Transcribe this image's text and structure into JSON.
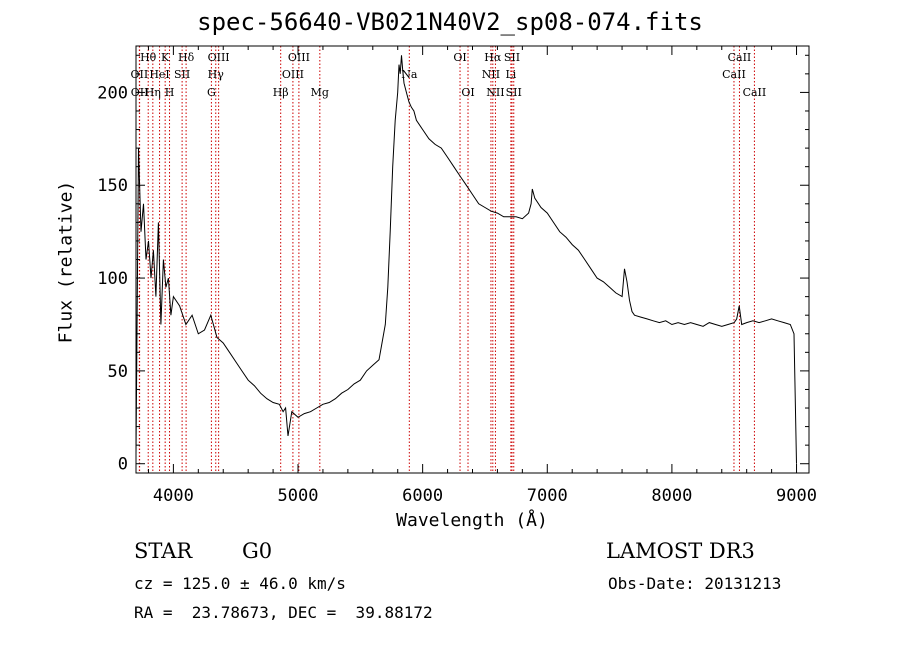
{
  "chart_data": {
    "type": "line",
    "title": "spec-56640-VB021N40V2_sp08-074.fits",
    "xlabel": "Wavelength (Å)",
    "ylabel": "Flux (relative)",
    "xlim": [
      3700,
      9100
    ],
    "ylim": [
      -5,
      225
    ],
    "x_ticks": [
      4000,
      5000,
      6000,
      7000,
      8000,
      9000
    ],
    "y_ticks": [
      0,
      50,
      100,
      150,
      200
    ],
    "series": [
      {
        "name": "flux",
        "x": [
          3700,
          3720,
          3740,
          3760,
          3780,
          3800,
          3820,
          3840,
          3860,
          3880,
          3900,
          3920,
          3940,
          3960,
          3980,
          4000,
          4050,
          4100,
          4150,
          4200,
          4250,
          4300,
          4350,
          4400,
          4450,
          4500,
          4550,
          4600,
          4650,
          4700,
          4750,
          4800,
          4850,
          4880,
          4900,
          4920,
          4950,
          5000,
          5050,
          5100,
          5150,
          5200,
          5250,
          5300,
          5350,
          5400,
          5450,
          5500,
          5550,
          5600,
          5650,
          5700,
          5720,
          5740,
          5760,
          5780,
          5800,
          5810,
          5820,
          5830,
          5840,
          5850,
          5870,
          5890,
          5910,
          5930,
          5950,
          6000,
          6050,
          6100,
          6150,
          6200,
          6250,
          6300,
          6350,
          6400,
          6450,
          6500,
          6550,
          6600,
          6650,
          6700,
          6750,
          6800,
          6850,
          6870,
          6880,
          6900,
          6950,
          7000,
          7050,
          7100,
          7150,
          7200,
          7250,
          7300,
          7350,
          7400,
          7450,
          7500,
          7550,
          7600,
          7620,
          7640,
          7660,
          7680,
          7700,
          7750,
          7800,
          7850,
          7900,
          7950,
          8000,
          8050,
          8100,
          8150,
          8200,
          8250,
          8300,
          8350,
          8400,
          8450,
          8500,
          8520,
          8540,
          8560,
          8600,
          8650,
          8700,
          8750,
          8800,
          8850,
          8900,
          8950,
          8980,
          9000
        ],
        "y": [
          5,
          170,
          125,
          140,
          110,
          120,
          100,
          115,
          90,
          130,
          75,
          110,
          95,
          100,
          80,
          90,
          85,
          75,
          80,
          70,
          72,
          80,
          68,
          65,
          60,
          55,
          50,
          45,
          42,
          38,
          35,
          33,
          32,
          28,
          30,
          15,
          28,
          25,
          27,
          28,
          30,
          32,
          33,
          35,
          38,
          40,
          43,
          45,
          50,
          53,
          56,
          75,
          95,
          125,
          160,
          185,
          200,
          215,
          210,
          220,
          212,
          205,
          200,
          195,
          192,
          190,
          185,
          180,
          175,
          172,
          170,
          165,
          160,
          155,
          150,
          145,
          140,
          138,
          136,
          135,
          133,
          133,
          133,
          132,
          135,
          140,
          148,
          143,
          138,
          135,
          130,
          125,
          122,
          118,
          115,
          110,
          105,
          100,
          98,
          95,
          92,
          90,
          105,
          98,
          88,
          82,
          80,
          79,
          78,
          77,
          76,
          77,
          75,
          76,
          75,
          76,
          75,
          74,
          76,
          75,
          74,
          75,
          76,
          78,
          85,
          75,
          76,
          77,
          76,
          77,
          78,
          77,
          76,
          75,
          70,
          0
        ]
      }
    ],
    "lines": [
      {
        "name": "Hθ",
        "wavelength": 3798,
        "row": 1
      },
      {
        "name": "OII",
        "wavelength": 3727,
        "row": 2
      },
      {
        "name": "OII",
        "wavelength": 3729,
        "row": 3
      },
      {
        "name": "HeI",
        "wavelength": 3889,
        "row": 2
      },
      {
        "name": "Hη",
        "wavelength": 3835,
        "row": 3
      },
      {
        "name": "K",
        "wavelength": 3934,
        "row": 1
      },
      {
        "name": "SII",
        "wavelength": 4070,
        "row": 2
      },
      {
        "name": "H",
        "wavelength": 3969,
        "row": 3
      },
      {
        "name": "Hδ",
        "wavelength": 4102,
        "row": 1
      },
      {
        "name": "OIII",
        "wavelength": 4363,
        "row": 1
      },
      {
        "name": "Hγ",
        "wavelength": 4340,
        "row": 2
      },
      {
        "name": "G",
        "wavelength": 4305,
        "row": 3
      },
      {
        "name": "Hβ",
        "wavelength": 4861,
        "row": 3
      },
      {
        "name": "OIII",
        "wavelength": 5007,
        "row": 1
      },
      {
        "name": "OIII",
        "wavelength": 4959,
        "row": 2
      },
      {
        "name": "Mg",
        "wavelength": 5175,
        "row": 3
      },
      {
        "name": "Na",
        "wavelength": 5893,
        "row": 2
      },
      {
        "name": "OI",
        "wavelength": 6300,
        "row": 1
      },
      {
        "name": "OI",
        "wavelength": 6364,
        "row": 3
      },
      {
        "name": "Hα",
        "wavelength": 6563,
        "row": 1
      },
      {
        "name": "NII",
        "wavelength": 6548,
        "row": 2
      },
      {
        "name": "NII",
        "wavelength": 6584,
        "row": 3
      },
      {
        "name": "SII",
        "wavelength": 6717,
        "row": 1
      },
      {
        "name": "Li",
        "wavelength": 6708,
        "row": 2
      },
      {
        "name": "SII",
        "wavelength": 6731,
        "row": 3
      },
      {
        "name": "CaII",
        "wavelength": 8542,
        "row": 1
      },
      {
        "name": "CaII",
        "wavelength": 8498,
        "row": 2
      },
      {
        "name": "CaII",
        "wavelength": 8662,
        "row": 3
      }
    ]
  },
  "info": {
    "object_class": "STAR",
    "subclass": "G0",
    "survey": "LAMOST DR3",
    "redshift": "cz = 125.0 ± 46.0 km/s",
    "obs_date": "Obs-Date: 20131213",
    "coords": "RA =  23.78673, DEC =  39.88172"
  },
  "colors": {
    "axis": "#000000",
    "spectrum": "#000000",
    "line_markers": "#cc0000"
  }
}
